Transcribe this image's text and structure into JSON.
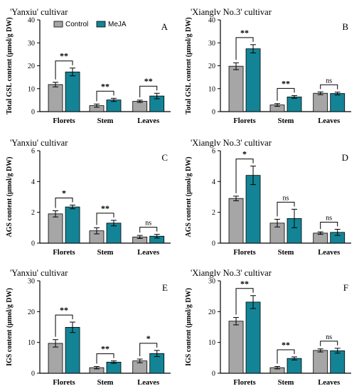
{
  "legend": [
    {
      "label": "Control",
      "color": "#a6a6a6"
    },
    {
      "label": "MeJA",
      "color": "#138496"
    }
  ],
  "chart_data": [
    {
      "type": "bar",
      "panel": "A",
      "title": "'Yanxiu' cultivar",
      "ylabel": "Total GSL content (μmol/g DW)",
      "ylim": [
        0,
        40
      ],
      "yticks": [
        0,
        10,
        20,
        30,
        40
      ],
      "categories": [
        "Florets",
        "Stem",
        "Leaves"
      ],
      "series": [
        {
          "name": "Control",
          "values": [
            11.8,
            2.6,
            4.5
          ],
          "errors": [
            1.0,
            0.7,
            0.5
          ]
        },
        {
          "name": "MeJA",
          "values": [
            17.3,
            5.1,
            6.8
          ],
          "errors": [
            1.7,
            0.7,
            1.2
          ]
        }
      ],
      "significance": [
        "**",
        "**",
        "**"
      ]
    },
    {
      "type": "bar",
      "panel": "B",
      "title": "'Xianglv No.3' cultivar",
      "ylabel": "Total GSL content (μmol/g DW)",
      "ylim": [
        0,
        40
      ],
      "yticks": [
        0,
        10,
        20,
        30,
        40
      ],
      "categories": [
        "Florets",
        "Stem",
        "Leaves"
      ],
      "series": [
        {
          "name": "Control",
          "values": [
            19.8,
            2.9,
            8.0
          ],
          "errors": [
            1.5,
            0.6,
            0.6
          ]
        },
        {
          "name": "MeJA",
          "values": [
            27.4,
            6.4,
            7.9
          ],
          "errors": [
            1.8,
            0.6,
            0.6
          ]
        }
      ],
      "significance": [
        "**",
        "**",
        "ns"
      ]
    },
    {
      "type": "bar",
      "panel": "C",
      "title": "'Yanxiu' cultivar",
      "ylabel": "AGS content (μmol/g DW)",
      "ylim": [
        0,
        6
      ],
      "yticks": [
        0,
        2,
        4,
        6
      ],
      "categories": [
        "Florets",
        "Stem",
        "Leaves"
      ],
      "series": [
        {
          "name": "Control",
          "values": [
            1.9,
            0.8,
            0.4
          ],
          "errors": [
            0.2,
            0.2,
            0.1
          ]
        },
        {
          "name": "MeJA",
          "values": [
            2.35,
            1.3,
            0.45
          ],
          "errors": [
            0.12,
            0.18,
            0.12
          ]
        }
      ],
      "significance": [
        "*",
        "**",
        "ns"
      ]
    },
    {
      "type": "bar",
      "panel": "D",
      "title": "'Xianglv No.3' cultivar",
      "ylabel": "AGS content (μmol/g DW)",
      "ylim": [
        0,
        6
      ],
      "yticks": [
        0,
        2,
        4,
        6
      ],
      "categories": [
        "Florets",
        "Stem",
        "Leaves"
      ],
      "series": [
        {
          "name": "Control",
          "values": [
            2.9,
            1.3,
            0.65
          ],
          "errors": [
            0.15,
            0.25,
            0.08
          ]
        },
        {
          "name": "MeJA",
          "values": [
            4.4,
            1.6,
            0.7
          ],
          "errors": [
            0.6,
            0.6,
            0.2
          ]
        }
      ],
      "significance": [
        "*",
        "ns",
        "ns"
      ]
    },
    {
      "type": "bar",
      "panel": "E",
      "title": "'Yanxiu' cultivar",
      "ylabel": "IGS content (μmol/g DW)",
      "ylim": [
        0,
        30
      ],
      "yticks": [
        0,
        10,
        20,
        30
      ],
      "categories": [
        "Florets",
        "Stem",
        "Leaves"
      ],
      "series": [
        {
          "name": "Control",
          "values": [
            9.7,
            1.8,
            4.0
          ],
          "errors": [
            1.2,
            0.4,
            0.6
          ]
        },
        {
          "name": "MeJA",
          "values": [
            14.9,
            3.6,
            6.4
          ],
          "errors": [
            1.7,
            0.4,
            1.0
          ]
        }
      ],
      "significance": [
        "**",
        "**",
        "*"
      ]
    },
    {
      "type": "bar",
      "panel": "F",
      "title": "'Xianglv No.3' cultivar",
      "ylabel": "IGS content (μmol/g DW)",
      "ylim": [
        0,
        30
      ],
      "yticks": [
        0,
        10,
        20,
        30
      ],
      "categories": [
        "Florets",
        "Stem",
        "Leaves"
      ],
      "series": [
        {
          "name": "Control",
          "values": [
            16.9,
            1.8,
            7.4
          ],
          "errors": [
            1.2,
            0.4,
            0.5
          ]
        },
        {
          "name": "MeJA",
          "values": [
            23.1,
            4.8,
            7.3
          ],
          "errors": [
            2.1,
            0.5,
            0.8
          ]
        }
      ],
      "significance": [
        "**",
        "**",
        "ns"
      ]
    }
  ]
}
